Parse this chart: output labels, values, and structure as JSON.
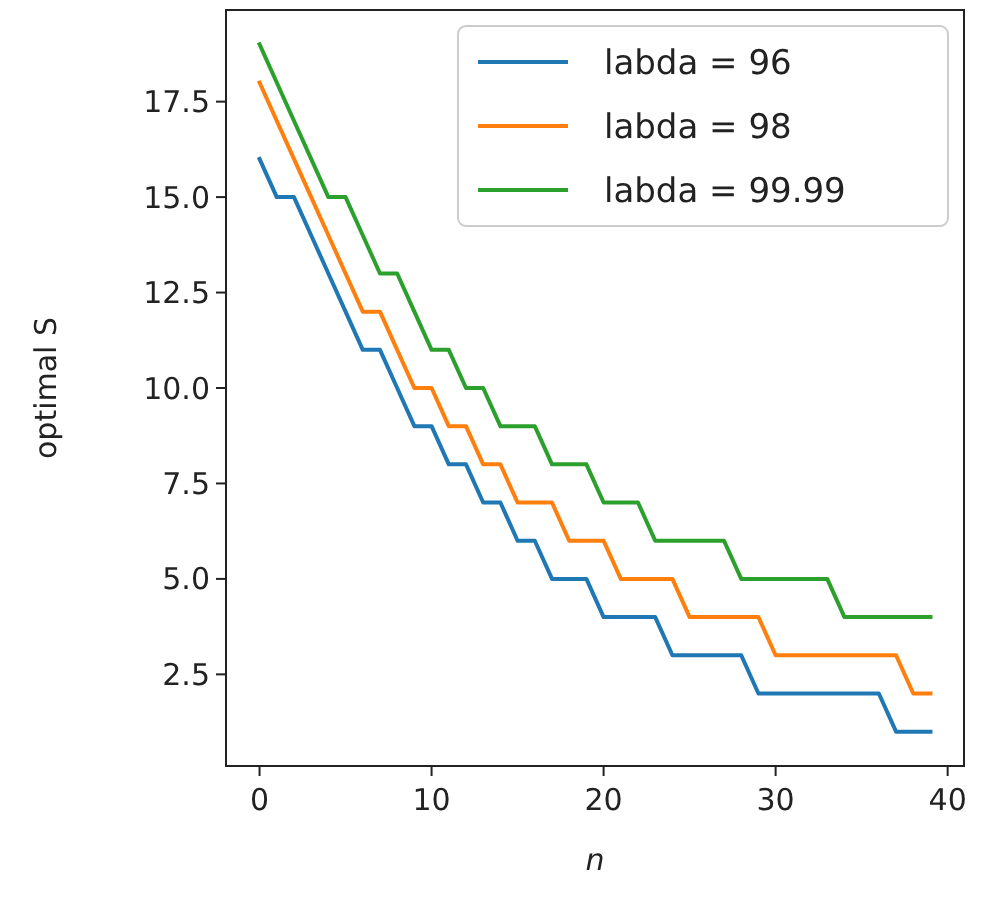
{
  "chart_data": {
    "type": "line",
    "xlabel": "n",
    "ylabel": "optimal S",
    "x": [
      0,
      1,
      2,
      3,
      4,
      5,
      6,
      7,
      8,
      9,
      10,
      11,
      12,
      13,
      14,
      15,
      16,
      17,
      18,
      19,
      20,
      21,
      22,
      23,
      24,
      25,
      26,
      27,
      28,
      29,
      30,
      31,
      32,
      33,
      34,
      35,
      36,
      37,
      38,
      39
    ],
    "series": [
      {
        "name": "labda = 96",
        "color": "#1f77b4",
        "values": [
          16,
          15,
          15,
          14,
          13,
          12,
          11,
          11,
          10,
          9,
          9,
          8,
          8,
          7,
          7,
          6,
          6,
          5,
          5,
          5,
          4,
          4,
          4,
          4,
          3,
          3,
          3,
          3,
          3,
          2,
          2,
          2,
          2,
          2,
          2,
          2,
          2,
          1,
          1,
          1
        ]
      },
      {
        "name": "labda = 98",
        "color": "#ff7f0e",
        "values": [
          18,
          17,
          16,
          15,
          14,
          13,
          12,
          12,
          11,
          10,
          10,
          9,
          9,
          8,
          8,
          7,
          7,
          7,
          6,
          6,
          6,
          5,
          5,
          5,
          5,
          4,
          4,
          4,
          4,
          4,
          3,
          3,
          3,
          3,
          3,
          3,
          3,
          3,
          2,
          2
        ]
      },
      {
        "name": "labda = 99.99",
        "color": "#2ca02c",
        "values": [
          19,
          18,
          17,
          16,
          15,
          15,
          14,
          13,
          13,
          12,
          11,
          11,
          10,
          10,
          9,
          9,
          9,
          8,
          8,
          8,
          7,
          7,
          7,
          6,
          6,
          6,
          6,
          6,
          5,
          5,
          5,
          5,
          5,
          5,
          4,
          4,
          4,
          4,
          4,
          4
        ]
      }
    ],
    "xlim": [
      -1.95,
      40.95
    ],
    "ylim": [
      0.1,
      19.9
    ],
    "xticks": [
      0,
      10,
      20,
      30,
      40
    ],
    "yticks": [
      {
        "value": 2.5,
        "label": "2.5"
      },
      {
        "value": 5,
        "label": "5.0"
      },
      {
        "value": 7.5,
        "label": "7.5"
      },
      {
        "value": 10,
        "label": "10.0"
      },
      {
        "value": 12.5,
        "label": "12.5"
      },
      {
        "value": 15,
        "label": "15.0"
      },
      {
        "value": 17.5,
        "label": "17.5"
      }
    ],
    "legend": "top right",
    "grid": false
  }
}
